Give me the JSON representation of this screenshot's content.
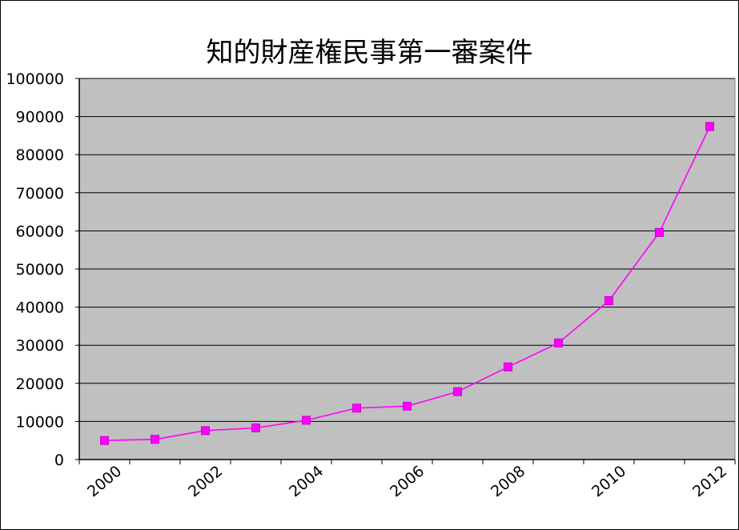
{
  "chart_data": {
    "type": "line",
    "title": "知的財産権民事第一審案件",
    "xlabel": "",
    "ylabel": "",
    "categories": [
      "2000",
      "2001",
      "2002",
      "2003",
      "2004",
      "2005",
      "2006",
      "2007",
      "2008",
      "2009",
      "2010",
      "2011",
      "2012"
    ],
    "x_tick_labels": [
      "2000",
      "2002",
      "2004",
      "2006",
      "2008",
      "2010",
      "2012"
    ],
    "y_tick_labels": [
      "0",
      "10000",
      "20000",
      "30000",
      "40000",
      "50000",
      "60000",
      "70000",
      "80000",
      "90000",
      "100000"
    ],
    "ylim": [
      0,
      100000
    ],
    "grid": "horizontal",
    "legend": "none",
    "series": [
      {
        "values": [
          5000,
          5300,
          7600,
          8300,
          10300,
          13500,
          14000,
          17800,
          24300,
          30600,
          41700,
          59600,
          87400
        ]
      }
    ],
    "colors": {
      "plot_background": "#c0c0c0",
      "series_line": "#ff00ff",
      "marker": "#ff00ff",
      "marker_edge": "#cc00cc",
      "grid": "#000000"
    }
  }
}
